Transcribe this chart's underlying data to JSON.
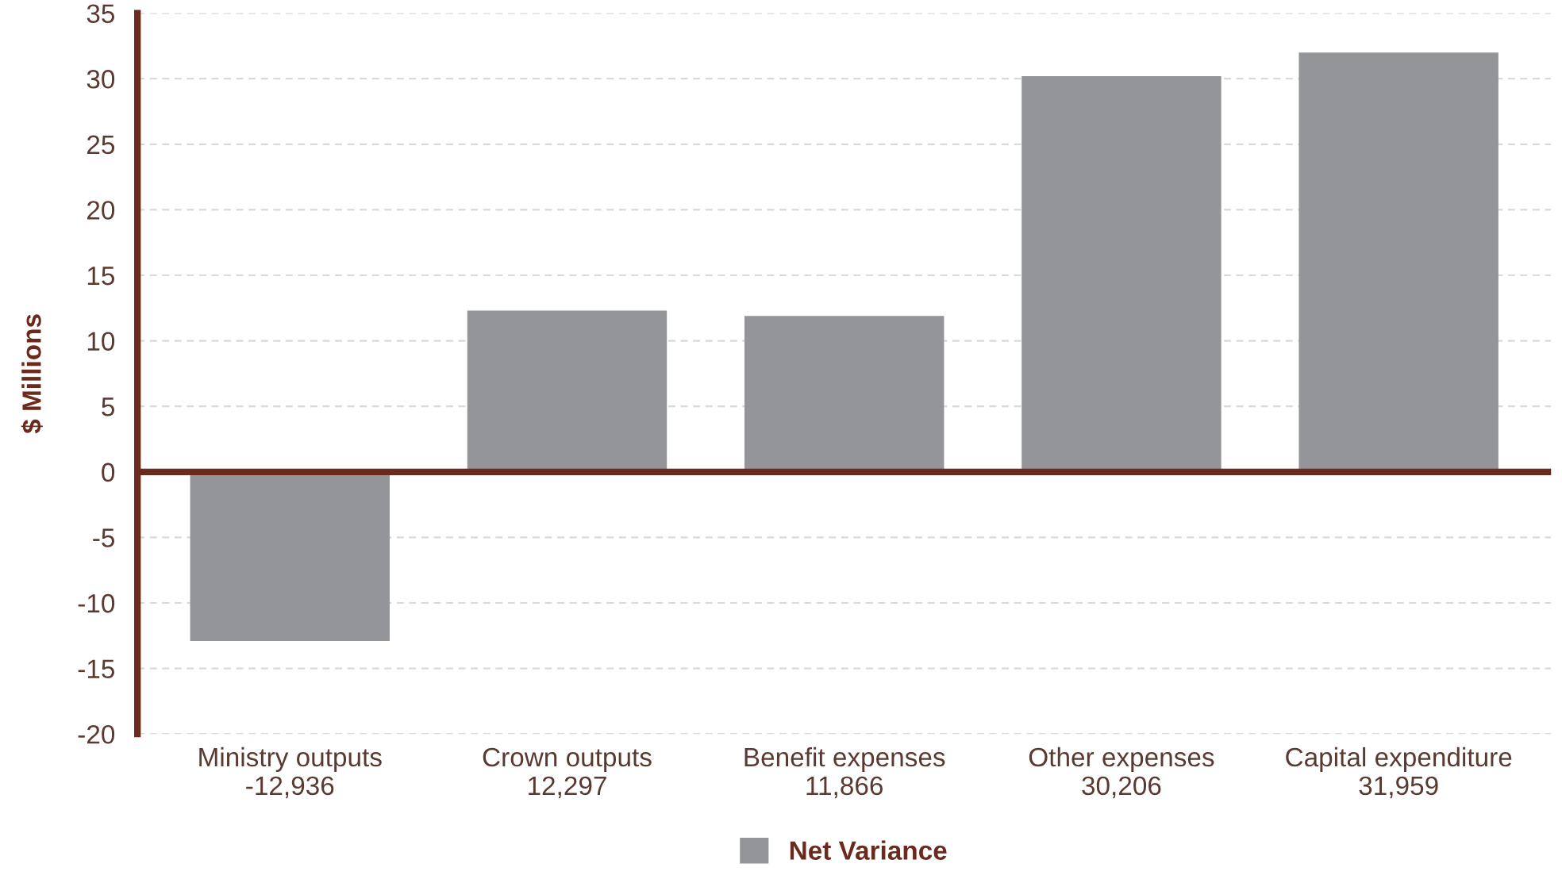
{
  "chart_data": {
    "type": "bar",
    "ylabel": "$ Millions",
    "categories": [
      "Ministry outputs\n-12,936",
      "Crown outputs\n12,297",
      "Benefit expenses\n11,866",
      "Other expenses\n30,206",
      "Capital expenditure\n31,959"
    ],
    "series": [
      {
        "name": "Net Variance",
        "color": "#939598",
        "values": [
          -12.9,
          12.3,
          11.9,
          30.2,
          32.0
        ]
      }
    ],
    "ylim": [
      -20,
      35
    ],
    "yticks": [
      -20,
      -15,
      -10,
      -5,
      0,
      5,
      10,
      15,
      20,
      25,
      30,
      35
    ],
    "ref_lines": [
      {
        "axis": "y",
        "value": 0,
        "color": "#6b2a1e"
      }
    ],
    "grid": "y",
    "legend": "bottom"
  }
}
